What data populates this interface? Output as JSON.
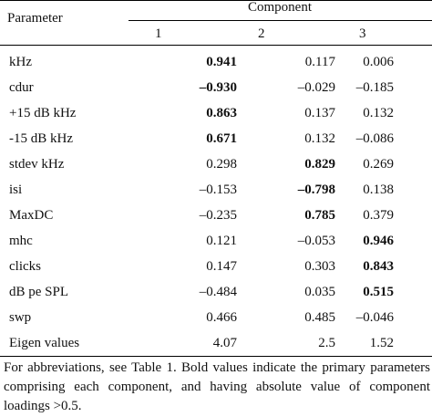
{
  "header": {
    "parameter": "Parameter",
    "component": "Component",
    "columns": [
      "1",
      "2",
      "3"
    ]
  },
  "rows": [
    {
      "label": "kHz",
      "values": [
        "0.941",
        "0.117",
        "0.006"
      ],
      "bold": [
        true,
        false,
        false
      ]
    },
    {
      "label": "cdur",
      "values": [
        "–0.930",
        "–0.029",
        "–0.185"
      ],
      "bold": [
        true,
        false,
        false
      ]
    },
    {
      "label": "+15 dB kHz",
      "values": [
        "0.863",
        "0.137",
        "0.132"
      ],
      "bold": [
        true,
        false,
        false
      ]
    },
    {
      "label": "-15 dB kHz",
      "values": [
        "0.671",
        "0.132",
        "–0.086"
      ],
      "bold": [
        true,
        false,
        false
      ]
    },
    {
      "label": "stdev kHz",
      "values": [
        "0.298",
        "0.829",
        "0.269"
      ],
      "bold": [
        false,
        true,
        false
      ]
    },
    {
      "label": "isi",
      "values": [
        "–0.153",
        "–0.798",
        "0.138"
      ],
      "bold": [
        false,
        true,
        false
      ]
    },
    {
      "label": "MaxDC",
      "values": [
        "–0.235",
        "0.785",
        "0.379"
      ],
      "bold": [
        false,
        true,
        false
      ]
    },
    {
      "label": "mhc",
      "values": [
        "0.121",
        "–0.053",
        "0.946"
      ],
      "bold": [
        false,
        false,
        true
      ]
    },
    {
      "label": "clicks",
      "values": [
        "0.147",
        "0.303",
        "0.843"
      ],
      "bold": [
        false,
        false,
        true
      ]
    },
    {
      "label": "dB pe SPL",
      "values": [
        "–0.484",
        "0.035",
        "0.515"
      ],
      "bold": [
        false,
        false,
        true
      ]
    },
    {
      "label": "swp",
      "values": [
        "0.466",
        "0.485",
        "–0.046"
      ],
      "bold": [
        false,
        false,
        false
      ]
    },
    {
      "label": "Eigen values",
      "values": [
        "4.07",
        "2.5",
        "1.52"
      ],
      "bold": [
        false,
        false,
        false
      ]
    }
  ],
  "footnote": "For abbreviations, see Table 1. Bold values indicate the primary parameters comprising each component, and having absolute value of component loadings >0.5."
}
